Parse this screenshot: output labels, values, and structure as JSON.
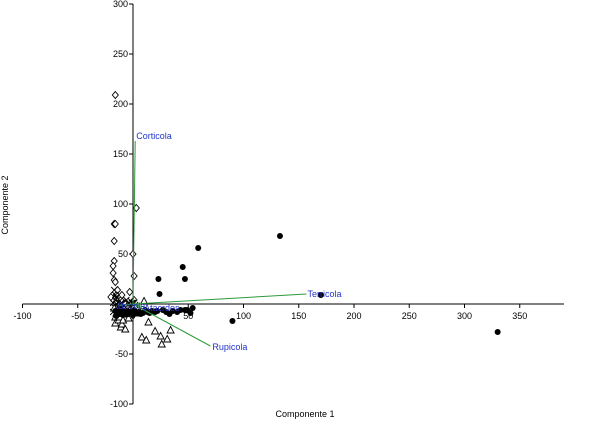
{
  "chart_data": {
    "type": "scatter",
    "title": "",
    "xlabel": "Componente 1",
    "ylabel": "Componente 2",
    "xlim": [
      -100,
      390
    ],
    "ylim": [
      -100,
      300
    ],
    "xticks": [
      -100,
      -50,
      0,
      50,
      100,
      150,
      200,
      250,
      300,
      350
    ],
    "yticks": [
      -100,
      -50,
      50,
      100,
      150,
      200,
      250,
      300
    ],
    "grid": false,
    "legend": "none",
    "series": [
      {
        "marker": "diamond",
        "values": [
          [
            -16,
            209
          ],
          [
            -17,
            80
          ],
          [
            -16,
            80
          ],
          [
            -17,
            63
          ],
          [
            -17,
            43
          ],
          [
            -18,
            38
          ],
          [
            -18,
            31
          ],
          [
            -17,
            24
          ],
          [
            -16,
            22
          ],
          [
            -15,
            9
          ],
          [
            -11,
            4
          ],
          [
            -10,
            9
          ],
          [
            -7,
            1
          ],
          [
            -3,
            12
          ],
          [
            0,
            50
          ],
          [
            1,
            28
          ],
          [
            3,
            96
          ],
          [
            1,
            4
          ],
          [
            -20,
            7
          ],
          [
            -14,
            14
          ],
          [
            -8,
            -4
          ],
          [
            -5,
            -2
          ]
        ]
      },
      {
        "marker": "cross",
        "values": [
          [
            -17,
            14
          ],
          [
            -16,
            9
          ],
          [
            -16,
            4
          ],
          [
            -15,
            0
          ],
          [
            -14,
            -3
          ],
          [
            -13,
            2
          ],
          [
            -12,
            -5
          ],
          [
            -10,
            1
          ],
          [
            -8,
            -2
          ],
          [
            -6,
            4
          ],
          [
            -4,
            0
          ],
          [
            -3,
            -3
          ],
          [
            -2,
            3
          ],
          [
            -1,
            1
          ],
          [
            0,
            1
          ],
          [
            2,
            -1
          ],
          [
            -18,
            -8
          ],
          [
            -12,
            -9
          ],
          [
            -9,
            -6
          ],
          [
            -18,
            1
          ],
          [
            -15,
            7
          ],
          [
            -17,
            -3
          ]
        ]
      },
      {
        "marker": "triangle",
        "values": [
          [
            -17,
            -4
          ],
          [
            -16,
            -13
          ],
          [
            -16,
            -19
          ],
          [
            -15,
            -9
          ],
          [
            -13,
            -16
          ],
          [
            -12,
            -13
          ],
          [
            -11,
            -23
          ],
          [
            -10,
            -20
          ],
          [
            -9,
            -16
          ],
          [
            -6,
            -10
          ],
          [
            -4,
            -14
          ],
          [
            -2,
            -8
          ],
          [
            0,
            -4
          ],
          [
            2,
            -9
          ],
          [
            6,
            -7
          ],
          [
            8,
            -33
          ],
          [
            12,
            -36
          ],
          [
            20,
            -27
          ],
          [
            25,
            -32
          ],
          [
            26,
            -40
          ],
          [
            31,
            -35
          ],
          [
            34,
            -26
          ],
          [
            10,
            3
          ],
          [
            14,
            -18
          ],
          [
            -7,
            -25
          ]
        ]
      },
      {
        "marker": "circle",
        "values": [
          [
            -16,
            -7
          ],
          [
            -15,
            -12
          ],
          [
            -14,
            -10
          ],
          [
            -13,
            -7
          ],
          [
            -12,
            -10
          ],
          [
            -11,
            -5
          ],
          [
            -10,
            -9
          ],
          [
            -9,
            -11
          ],
          [
            -8,
            -8
          ],
          [
            -7,
            -10
          ],
          [
            -5,
            -7
          ],
          [
            -4,
            -10
          ],
          [
            -3,
            -8
          ],
          [
            -2,
            -9
          ],
          [
            0,
            -11
          ],
          [
            1,
            -6
          ],
          [
            3,
            -9
          ],
          [
            5,
            -8
          ],
          [
            7,
            -10
          ],
          [
            9,
            -9
          ],
          [
            11,
            -6
          ],
          [
            13,
            -8
          ],
          [
            15,
            -9
          ],
          [
            17,
            -7
          ],
          [
            20,
            -8
          ],
          [
            22,
            -7
          ],
          [
            27,
            -6
          ],
          [
            30,
            -8
          ],
          [
            33,
            -10
          ],
          [
            36,
            -7
          ],
          [
            40,
            -8
          ],
          [
            43,
            -6
          ],
          [
            47,
            -6
          ],
          [
            49,
            -6
          ],
          [
            52,
            -9
          ],
          [
            54,
            -4
          ],
          [
            59,
            56
          ],
          [
            45,
            37
          ],
          [
            47,
            25
          ],
          [
            23,
            25
          ],
          [
            24,
            10
          ],
          [
            90,
            -17
          ],
          [
            133,
            68
          ],
          [
            170,
            9
          ],
          [
            330,
            -28
          ]
        ]
      }
    ],
    "vectors": [
      {
        "label": "Corticola",
        "x": 2,
        "y": 163,
        "color": "#2233cc"
      },
      {
        "label": "Terricola",
        "x": 157,
        "y": 10,
        "color": "#2233cc"
      },
      {
        "label": "Rupicola",
        "x": 70,
        "y": -42,
        "color": "#2233cc"
      },
      {
        "label": "Atacrdes",
        "x": 10,
        "y": -3,
        "color": "#2233cc"
      },
      {
        "label": "Bricola",
        "x": -12,
        "y": -1,
        "color": "#2233cc"
      }
    ],
    "vector_color": "#2e9a3a"
  }
}
